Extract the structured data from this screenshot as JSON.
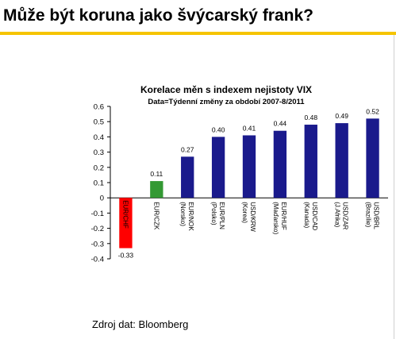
{
  "page": {
    "headline": "Může být koruna jako švýcarský frank?",
    "source": "Zdroj dat: Bloomberg",
    "rule_color": "#f5c400"
  },
  "chart_data": {
    "type": "bar",
    "title": "Korelace měn s indexem nejistoty VIX",
    "subtitle": "Data=Týdenní změny za období 2007-8/2011",
    "xlabel": "",
    "ylabel": "",
    "ylim": [
      -0.4,
      0.6
    ],
    "yticks": [
      0.6,
      0.5,
      0.4,
      0.3,
      0.2,
      0.1,
      0,
      -0.1,
      -0.2,
      -0.3,
      -0.4
    ],
    "categories": [
      [
        "EUR/CHF"
      ],
      [
        "EUR/CZK"
      ],
      [
        "EUR/NOK",
        "(Norsko)"
      ],
      [
        "EUR/PLN",
        "(Polsko)"
      ],
      [
        "USD/KRW",
        "(Korea)"
      ],
      [
        "EUR/HUF",
        "(Maďarsko)"
      ],
      [
        "USD/CAD",
        "(Kanada)"
      ],
      [
        "USD/ZAR",
        "(J.Afrika)"
      ],
      [
        "USD/BRL",
        "(Brazílie)"
      ]
    ],
    "values": [
      -0.33,
      0.11,
      0.27,
      0.4,
      0.41,
      0.44,
      0.48,
      0.49,
      0.52
    ],
    "value_labels": [
      "-0.33",
      "0.11",
      "0.27",
      "0.40",
      "0.41",
      "0.44",
      "0.48",
      "0.49",
      "0.52"
    ],
    "colors": [
      "#ff0000",
      "#339933",
      "#1a1a8c",
      "#1a1a8c",
      "#1a1a8c",
      "#1a1a8c",
      "#1a1a8c",
      "#1a1a8c",
      "#1a1a8c"
    ],
    "grid": false,
    "legend": "none"
  }
}
